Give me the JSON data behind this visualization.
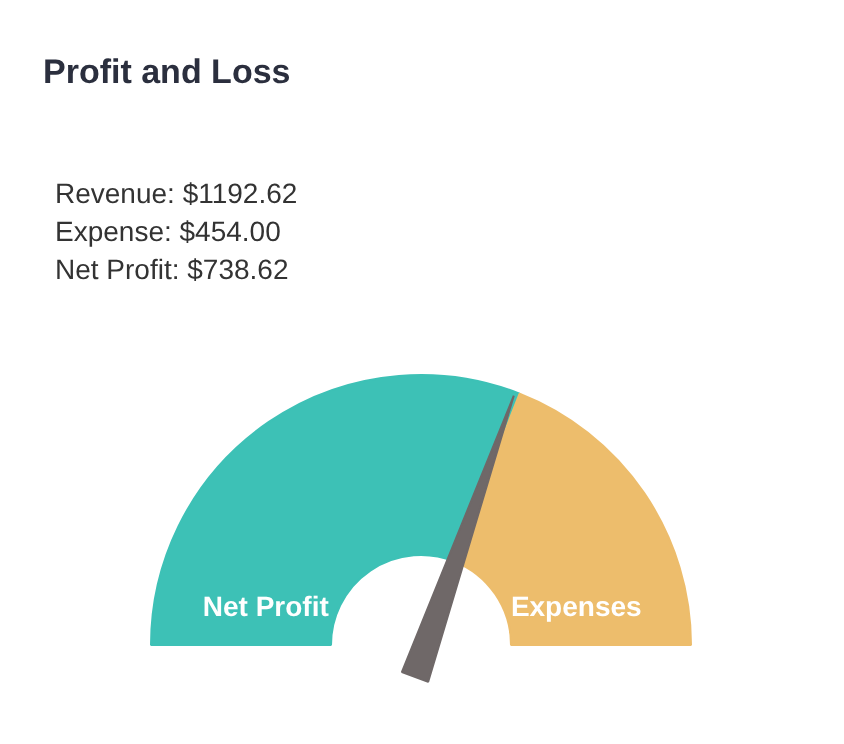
{
  "chart_data": {
    "type": "donut",
    "title": "Profit and Loss",
    "annotations": [
      "Revenue: $1192.62",
      "Expense: $454.00",
      "Net Profit: $738.62"
    ],
    "categories": [
      "Net Profit",
      "Expenses"
    ],
    "values": [
      61.9,
      38.1
    ],
    "colors": [
      "#3dc1b6",
      "#edbd6c"
    ],
    "needle": "Net Profit"
  }
}
